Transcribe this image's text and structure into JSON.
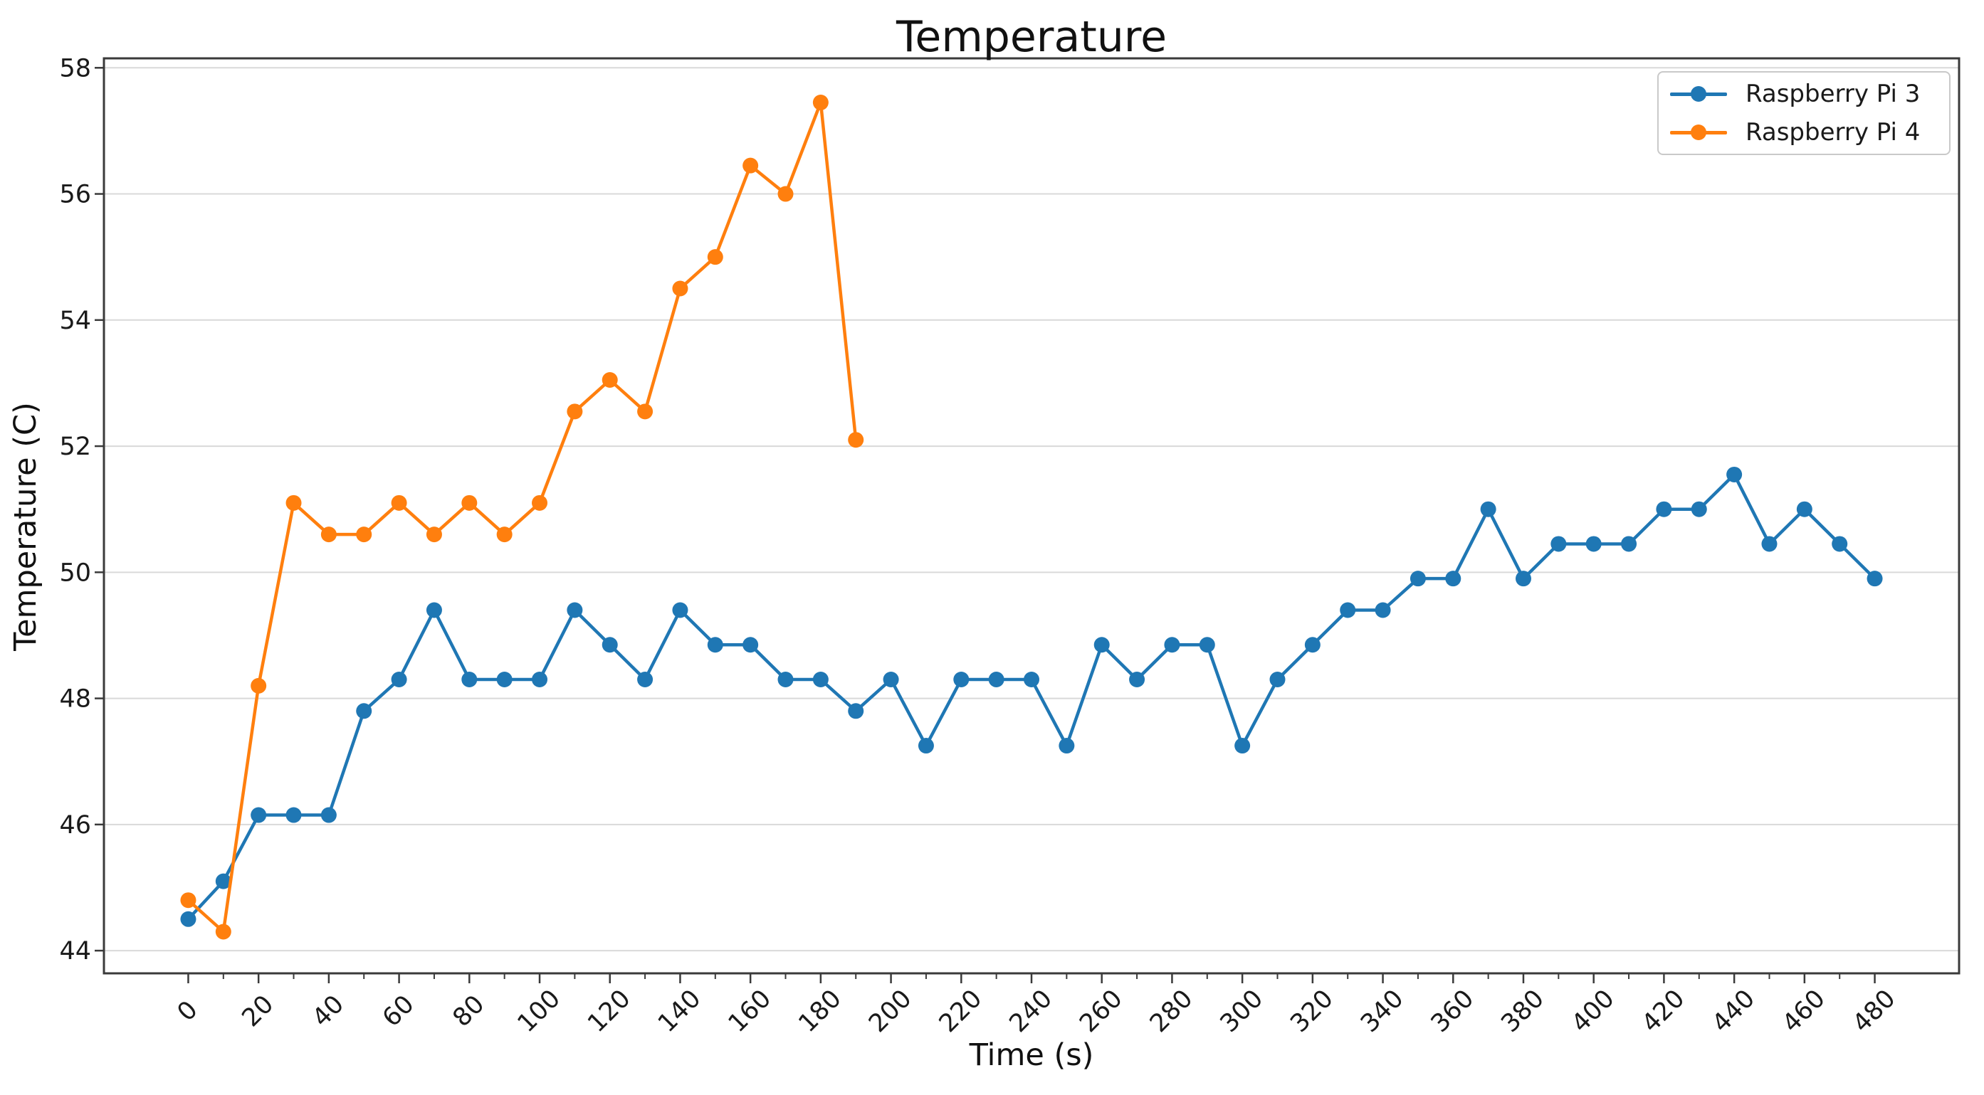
{
  "figure": {
    "title": "Temperature",
    "xlabel": "Time (s)",
    "ylabel": "Temperature (C)"
  },
  "chart_data": {
    "type": "line",
    "title": "Temperature",
    "xlabel": "Time (s)",
    "ylabel": "Temperature (C)",
    "xlim": [
      -24,
      504
    ],
    "ylim": [
      43.64,
      58.15
    ],
    "x_major_ticks": [
      0,
      20,
      40,
      60,
      80,
      100,
      120,
      140,
      160,
      180,
      200,
      220,
      240,
      260,
      280,
      300,
      320,
      340,
      360,
      380,
      400,
      420,
      440,
      460,
      480
    ],
    "x_minor_step": 10,
    "y_ticks": [
      44,
      46,
      48,
      50,
      52,
      54,
      56,
      58
    ],
    "grid": "horizontal",
    "grid_color": "#d9d9d9",
    "spine_color": "#3a3a3a",
    "legend_position": "upper right",
    "series": [
      {
        "name": "Raspberry Pi 3",
        "color": "#1f77b4",
        "marker": "o",
        "x": [
          0,
          10,
          20,
          30,
          40,
          50,
          60,
          70,
          80,
          90,
          100,
          110,
          120,
          130,
          140,
          150,
          160,
          170,
          180,
          190,
          200,
          210,
          220,
          230,
          240,
          250,
          260,
          270,
          280,
          290,
          300,
          310,
          320,
          330,
          340,
          350,
          360,
          370,
          380,
          390,
          400,
          410,
          420,
          430,
          440,
          450,
          460,
          470,
          480
        ],
        "values": [
          44.5,
          45.1,
          46.15,
          46.15,
          46.15,
          47.8,
          48.3,
          49.4,
          48.3,
          48.3,
          48.3,
          49.4,
          48.85,
          48.3,
          49.4,
          48.85,
          48.85,
          48.3,
          48.3,
          47.8,
          48.3,
          47.25,
          48.3,
          48.3,
          48.3,
          47.25,
          48.85,
          48.3,
          48.85,
          48.85,
          47.25,
          48.3,
          48.85,
          49.4,
          49.4,
          49.9,
          49.9,
          51.0,
          49.9,
          50.45,
          50.45,
          50.45,
          51.0,
          51.0,
          51.55,
          50.45,
          51.0,
          50.45,
          49.9
        ]
      },
      {
        "name": "Raspberry Pi 4",
        "color": "#ff7f0e",
        "marker": "o",
        "x": [
          0,
          10,
          20,
          30,
          40,
          50,
          60,
          70,
          80,
          90,
          100,
          110,
          120,
          130,
          140,
          150,
          160,
          170,
          180,
          190
        ],
        "values": [
          44.8,
          44.3,
          48.2,
          51.1,
          50.6,
          50.6,
          51.1,
          50.6,
          51.1,
          50.6,
          51.1,
          52.55,
          53.05,
          52.55,
          54.5,
          55.0,
          56.45,
          56.0,
          57.45,
          52.1
        ]
      }
    ]
  }
}
